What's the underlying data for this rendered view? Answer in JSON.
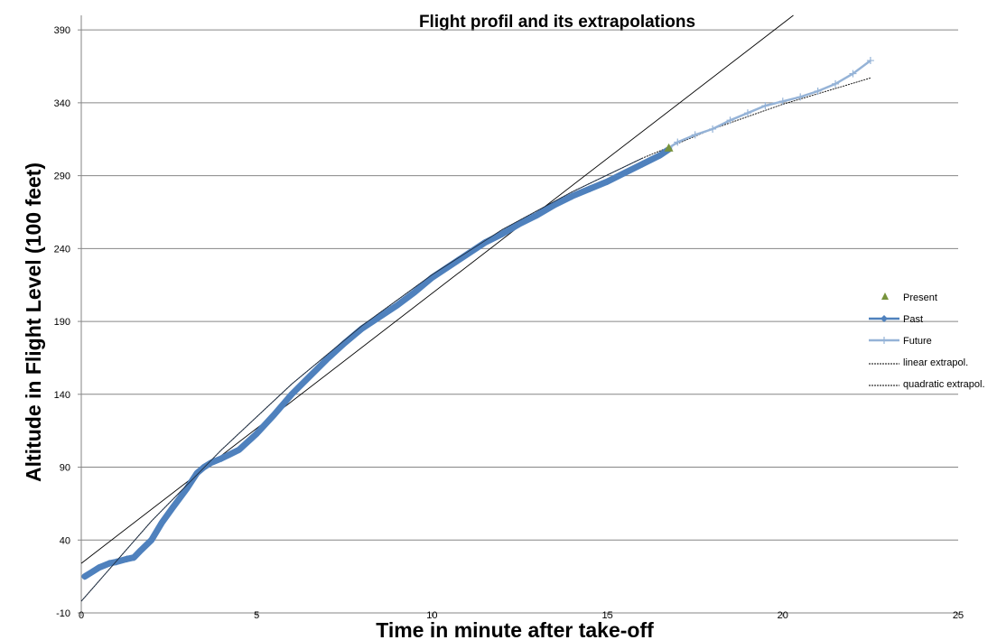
{
  "chart_data": {
    "type": "line",
    "title": "Flight profil and its extrapolations",
    "xlabel": "Time in minute after take-off",
    "ylabel": "Altitude in Flight Level (100 feet)",
    "xlim": [
      0,
      25
    ],
    "ylim": [
      -10,
      400
    ],
    "x_ticks": [
      0,
      5,
      10,
      15,
      20,
      25
    ],
    "y_ticks": [
      -10,
      40,
      90,
      140,
      190,
      240,
      290,
      340,
      390
    ],
    "grid": "horizontal major gridlines",
    "legend_position": "right",
    "colors": {
      "present": "#77933c",
      "past": "#4f81bd",
      "future": "#95b3d7",
      "extrapolation": "#000000",
      "grid": "#868686"
    },
    "series": [
      {
        "name": "Present",
        "marker": "triangle",
        "points": [
          [
            16.75,
            309
          ]
        ]
      },
      {
        "name": "Past",
        "marker": "diamond",
        "points": [
          [
            0.1,
            15
          ],
          [
            0.3,
            18
          ],
          [
            0.5,
            21
          ],
          [
            0.8,
            24
          ],
          [
            1.0,
            25
          ],
          [
            1.3,
            27
          ],
          [
            1.5,
            28
          ],
          [
            1.7,
            33
          ],
          [
            2.0,
            40
          ],
          [
            2.3,
            52
          ],
          [
            2.6,
            62
          ],
          [
            3.0,
            75
          ],
          [
            3.3,
            86
          ],
          [
            3.5,
            90
          ],
          [
            3.7,
            93
          ],
          [
            4.0,
            96
          ],
          [
            4.5,
            102
          ],
          [
            5.0,
            113
          ],
          [
            5.5,
            126
          ],
          [
            6.0,
            140
          ],
          [
            6.5,
            152
          ],
          [
            7.0,
            164
          ],
          [
            7.5,
            175
          ],
          [
            8.0,
            185
          ],
          [
            8.5,
            193
          ],
          [
            9.0,
            201
          ],
          [
            9.5,
            210
          ],
          [
            10.0,
            220
          ],
          [
            10.5,
            228
          ],
          [
            11.0,
            236
          ],
          [
            11.5,
            244
          ],
          [
            12.0,
            250
          ],
          [
            12.5,
            257
          ],
          [
            13.0,
            263
          ],
          [
            13.5,
            270
          ],
          [
            14.0,
            276
          ],
          [
            14.5,
            281
          ],
          [
            15.0,
            286
          ],
          [
            15.5,
            292
          ],
          [
            16.0,
            298
          ],
          [
            16.5,
            304
          ],
          [
            16.75,
            308
          ]
        ]
      },
      {
        "name": "Future",
        "marker": "plus",
        "points": [
          [
            16.75,
            309
          ],
          [
            17.0,
            313
          ],
          [
            17.5,
            318
          ],
          [
            18.0,
            322
          ],
          [
            18.5,
            328
          ],
          [
            19.0,
            333
          ],
          [
            19.5,
            338
          ],
          [
            20.0,
            341
          ],
          [
            20.5,
            344
          ],
          [
            21.0,
            348
          ],
          [
            21.5,
            353
          ],
          [
            22.0,
            360
          ],
          [
            22.5,
            369
          ]
        ]
      },
      {
        "name": "linear extrapol.",
        "style": "dashed",
        "points": [
          [
            0,
            24
          ],
          [
            20.3,
            400
          ]
        ]
      },
      {
        "name": "quadratic extrapol.",
        "style": "dashed",
        "points": [
          [
            0,
            -2
          ],
          [
            2,
            53
          ],
          [
            4,
            102
          ],
          [
            6,
            147
          ],
          [
            8,
            187
          ],
          [
            10,
            222
          ],
          [
            12,
            253
          ],
          [
            14,
            279
          ],
          [
            16,
            302
          ],
          [
            18,
            322
          ],
          [
            20,
            339
          ],
          [
            22.5,
            357
          ]
        ]
      }
    ]
  }
}
